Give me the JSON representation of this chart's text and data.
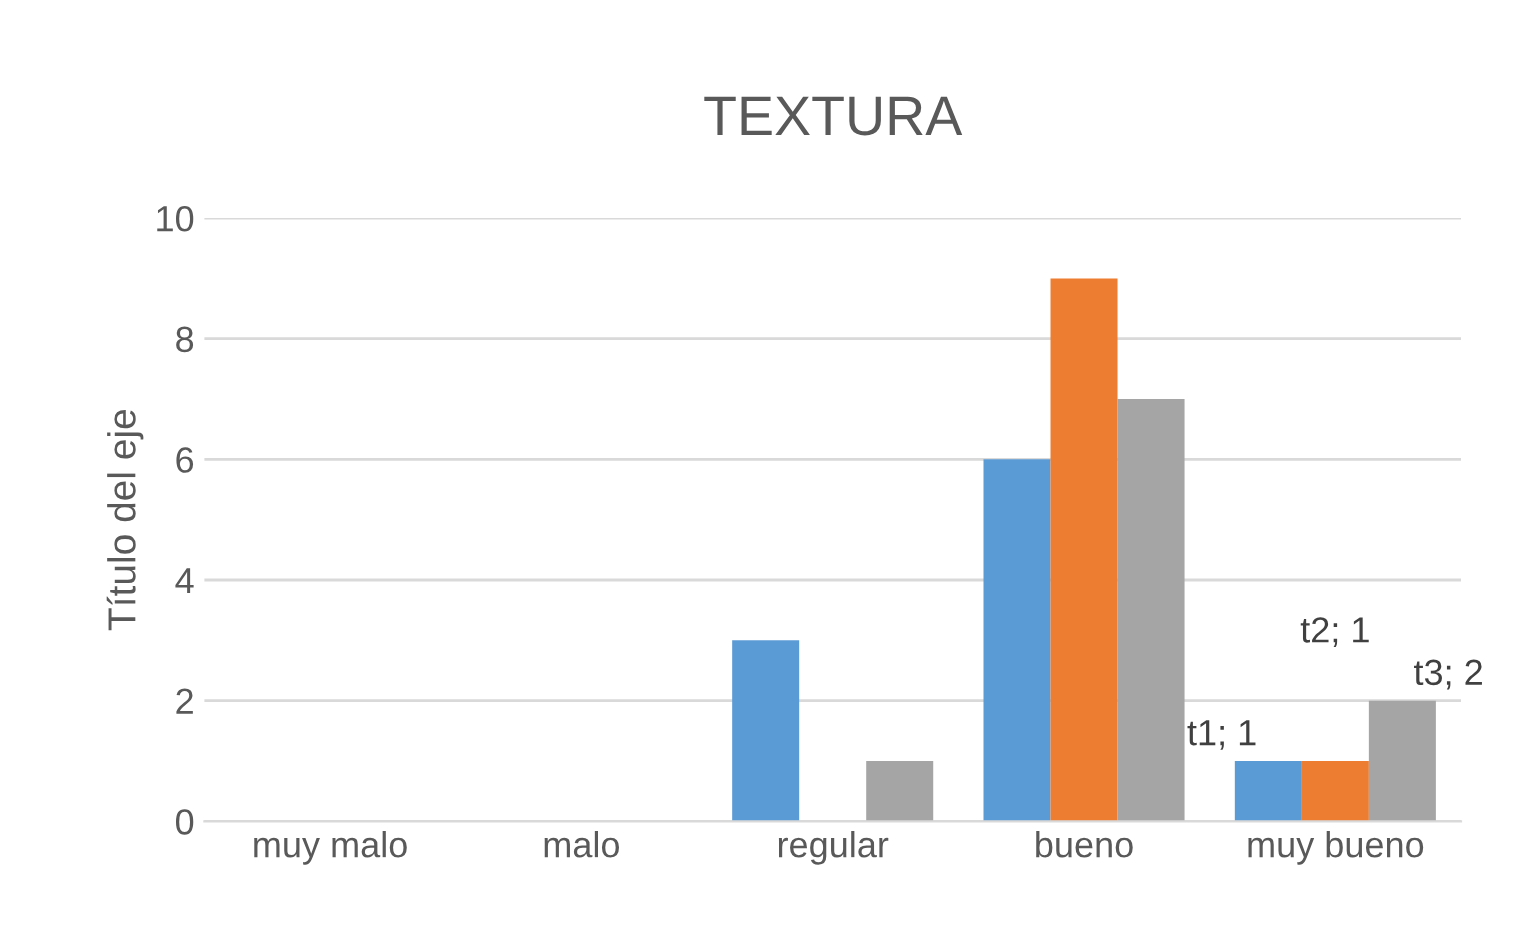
{
  "chart_data": {
    "type": "bar",
    "title": "TEXTURA",
    "ylabel": "Título del eje",
    "categories": [
      "muy malo",
      "malo",
      "regular",
      "bueno",
      "muy bueno"
    ],
    "series": [
      {
        "color": "#5b9bd5",
        "values": [
          0,
          0,
          3,
          6,
          1
        ],
        "value_labels": [
          null,
          null,
          null,
          null,
          "t1; 1"
        ]
      },
      {
        "color": "#ed7d31",
        "values": [
          0,
          0,
          0,
          9,
          1
        ],
        "value_labels": [
          null,
          null,
          null,
          null,
          "t2; 1"
        ]
      },
      {
        "color": "#a5a5a5",
        "values": [
          0,
          0,
          1,
          7,
          2
        ],
        "value_labels": [
          null,
          null,
          null,
          null,
          "t3; 2"
        ]
      }
    ],
    "ylim": [
      0,
      10
    ],
    "yticks": [
      0,
      2,
      4,
      6,
      8,
      10
    ],
    "grid": "y",
    "legend": false
  }
}
